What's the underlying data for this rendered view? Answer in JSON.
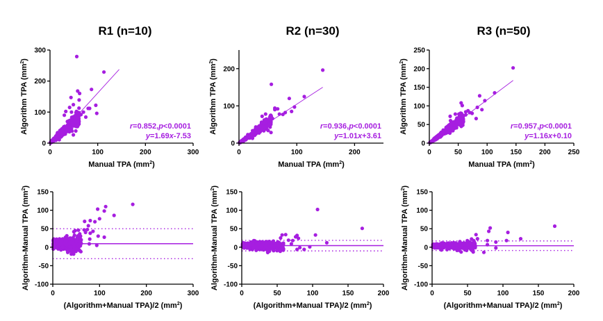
{
  "chart_data": [
    {
      "id": "r1-scatter",
      "type": "scatter",
      "title": "R1 (n=10)",
      "xlabel": "Manual TPA (mm²)",
      "ylabel": "Algorithm TPA (mm²)",
      "xlim": [
        0,
        300
      ],
      "ylim": [
        0,
        300
      ],
      "xticks": [
        0,
        100,
        200,
        300
      ],
      "yticks": [
        0,
        100,
        200,
        300
      ],
      "color": "#A61EE0",
      "regression": {
        "slope": 1.69,
        "intercept": -7.53,
        "x_range": [
          0,
          145
        ]
      },
      "annotation": {
        "r": "0.852",
        "p": "<0.0001",
        "equation": "1.69x-7.53"
      },
      "outliers": [
        [
          56,
          279
        ],
        [
          113,
          229
        ],
        [
          58,
          168
        ],
        [
          87,
          173
        ],
        [
          62,
          160
        ],
        [
          44,
          147
        ],
        [
          61,
          139
        ],
        [
          96,
          122
        ],
        [
          98,
          96
        ],
        [
          83,
          112
        ],
        [
          80,
          112
        ],
        [
          49,
          124
        ],
        [
          33,
          102
        ],
        [
          41,
          115
        ],
        [
          75,
          84
        ],
        [
          65,
          92
        ],
        [
          45,
          100
        ],
        [
          52,
          85
        ],
        [
          30,
          90
        ],
        [
          70,
          100
        ]
      ],
      "cluster": {
        "n": 420,
        "x_max": 60,
        "slope": 1.4,
        "spread": 0.35
      }
    },
    {
      "id": "r2-scatter",
      "type": "scatter",
      "title": "R2 (n=30)",
      "xlabel": "Manual TPA (mm²)",
      "ylabel": "Algorithm TPA (mm²)",
      "xlim": [
        0,
        250
      ],
      "ylim": [
        0,
        250
      ],
      "xticks": [
        0,
        100,
        200
      ],
      "yticks": [
        0,
        100,
        200
      ],
      "color": "#A61EE0",
      "regression": {
        "slope": 1.01,
        "intercept": 3.61,
        "x_range": [
          0,
          145
        ]
      },
      "annotation": {
        "r": "0.936",
        "p": "<0.0001",
        "equation": "1.01x+3.61"
      },
      "outliers": [
        [
          145,
          196
        ],
        [
          56,
          158
        ],
        [
          113,
          125
        ],
        [
          87,
          120
        ],
        [
          96,
          97
        ],
        [
          62,
          94
        ],
        [
          67,
          92
        ],
        [
          62,
          90
        ],
        [
          91,
          85
        ],
        [
          80,
          82
        ],
        [
          76,
          77
        ],
        [
          70,
          78
        ],
        [
          46,
          78
        ],
        [
          40,
          72
        ],
        [
          55,
          75
        ],
        [
          58,
          66
        ]
      ],
      "cluster": {
        "n": 420,
        "x_max": 55,
        "slope": 1.1,
        "spread": 0.3
      }
    },
    {
      "id": "r3-scatter",
      "type": "scatter",
      "title": "R3 (n=50)",
      "xlabel": "Manual TPA (mm²)",
      "ylabel": "Algorithm TPA (mm²)",
      "xlim": [
        0,
        250
      ],
      "ylim": [
        0,
        250
      ],
      "xticks": [
        0,
        50,
        100,
        150,
        200,
        250
      ],
      "yticks": [
        0,
        50,
        100,
        150,
        200,
        250
      ],
      "color": "#A61EE0",
      "regression": {
        "slope": 1.16,
        "intercept": 0.1,
        "x_range": [
          0,
          145
        ]
      },
      "annotation": {
        "r": "0.957",
        "p": "<0.0001",
        "equation": "1.16x+0.10"
      },
      "outliers": [
        [
          145,
          202
        ],
        [
          113,
          135
        ],
        [
          87,
          127
        ],
        [
          96,
          114
        ],
        [
          83,
          96
        ],
        [
          91,
          90
        ],
        [
          55,
          108
        ],
        [
          57,
          101
        ],
        [
          81,
          66
        ],
        [
          74,
          80
        ],
        [
          67,
          87
        ],
        [
          63,
          84
        ],
        [
          70,
          82
        ],
        [
          63,
          76
        ],
        [
          45,
          78
        ],
        [
          53,
          75
        ],
        [
          36,
          72
        ]
      ],
      "cluster": {
        "n": 420,
        "x_max": 58,
        "slope": 1.15,
        "spread": 0.25
      }
    },
    {
      "id": "r1-bland-altman",
      "type": "scatter",
      "xlabel": "(Algorithm+Manual TPA)/2 (mm²)",
      "ylabel": "Algorithm-Manual TPA (mm²)",
      "xlim": [
        0,
        300
      ],
      "ylim": [
        -100,
        150
      ],
      "xticks": [
        0,
        100,
        200,
        300
      ],
      "yticks": [
        -100,
        -50,
        0,
        50,
        100,
        150
      ],
      "color": "#A61EE0",
      "mean_bias": 9.5,
      "loa_upper": 50,
      "loa_lower": -31,
      "outliers": [
        [
          171,
          116
        ],
        [
          113,
          110
        ],
        [
          96,
          103
        ],
        [
          110,
          98
        ],
        [
          131,
          86
        ],
        [
          100,
          77
        ],
        [
          97,
          30
        ],
        [
          110,
          27
        ],
        [
          94,
          5
        ],
        [
          80,
          72
        ],
        [
          90,
          69
        ],
        [
          68,
          70
        ],
        [
          76,
          58
        ],
        [
          74,
          48
        ],
        [
          70,
          40
        ],
        [
          80,
          38
        ],
        [
          67,
          47
        ],
        [
          86,
          43
        ],
        [
          79,
          22
        ],
        [
          78,
          9
        ],
        [
          60,
          -12
        ],
        [
          55,
          46
        ],
        [
          48,
          45
        ],
        [
          45,
          42
        ],
        [
          30,
          31
        ]
      ],
      "cluster": {
        "n": 420,
        "x_max": 60,
        "mean": 8,
        "spread": 13
      }
    },
    {
      "id": "r2-bland-altman",
      "type": "scatter",
      "xlabel": "(Algorithm+Manual TPA)/2 (mm²)",
      "ylabel": "Algorithm-Manual TPA (mm²)",
      "xlim": [
        0,
        200
      ],
      "ylim": [
        -100,
        150
      ],
      "xticks": [
        0,
        50,
        100,
        150,
        200
      ],
      "yticks": [
        -100,
        -50,
        0,
        50,
        100,
        150
      ],
      "color": "#A61EE0",
      "mean_bias": 4.3,
      "loa_upper": 18.5,
      "loa_lower": -10,
      "outliers": [
        [
          107,
          102
        ],
        [
          170,
          51
        ],
        [
          104,
          33
        ],
        [
          120,
          12
        ],
        [
          96,
          1
        ],
        [
          88,
          -6
        ],
        [
          62,
          34
        ],
        [
          57,
          33
        ],
        [
          78,
          32
        ],
        [
          76,
          28
        ],
        [
          80,
          24
        ],
        [
          72,
          18
        ],
        [
          70,
          9
        ],
        [
          82,
          -1
        ],
        [
          78,
          -6
        ],
        [
          66,
          19
        ]
      ],
      "cluster": {
        "n": 420,
        "x_max": 58,
        "mean": 4,
        "spread": 7
      }
    },
    {
      "id": "r3-bland-altman",
      "type": "scatter",
      "xlabel": "(Algorithm+Manual TPA)/2 (mm²)",
      "ylabel": "Algorithm-Manual TPA (mm²)",
      "xlim": [
        0,
        200
      ],
      "ylim": [
        -100,
        150
      ],
      "xticks": [
        0,
        50,
        100,
        150,
        200
      ],
      "yticks": [
        -100,
        -50,
        0,
        50,
        100,
        150
      ],
      "color": "#A61EE0",
      "mean_bias": 4,
      "loa_upper": 17,
      "loa_lower": -9,
      "outliers": [
        [
          173,
          57
        ],
        [
          82,
          52
        ],
        [
          107,
          40
        ],
        [
          80,
          43
        ],
        [
          62,
          34
        ],
        [
          125,
          23
        ],
        [
          105,
          18
        ],
        [
          90,
          14
        ],
        [
          90,
          -2
        ],
        [
          73,
          -14
        ],
        [
          78,
          18
        ],
        [
          78,
          7
        ],
        [
          64,
          23
        ],
        [
          58,
          -13
        ],
        [
          41,
          -13
        ]
      ],
      "cluster": {
        "n": 420,
        "x_max": 60,
        "mean": 4,
        "spread": 6
      }
    }
  ]
}
